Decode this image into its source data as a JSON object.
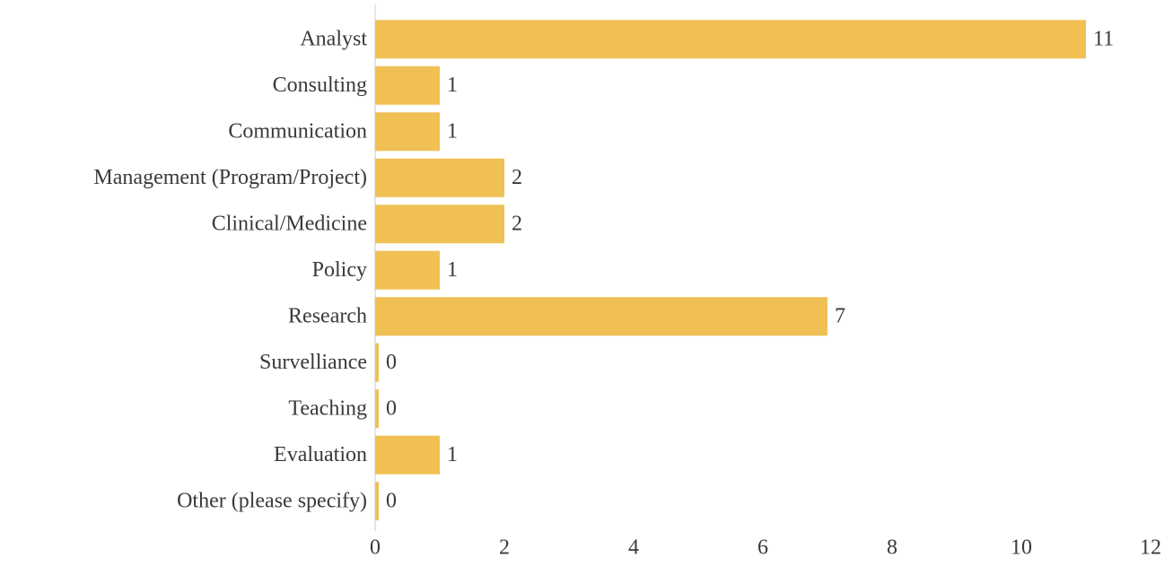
{
  "chart_data": {
    "type": "bar",
    "orientation": "horizontal",
    "categories": [
      "Analyst",
      "Consulting",
      "Communication",
      "Management (Program/Project)",
      "Clinical/Medicine",
      "Policy",
      "Research",
      "Survelliance",
      "Teaching",
      "Evaluation",
      "Other (please specify)"
    ],
    "values": [
      11,
      1,
      1,
      2,
      2,
      1,
      7,
      0,
      0,
      1,
      0
    ],
    "color": "#f0c054",
    "xlim": [
      0,
      12
    ],
    "xticks": [
      0,
      2,
      4,
      6,
      8,
      10,
      12
    ],
    "grid": false
  }
}
